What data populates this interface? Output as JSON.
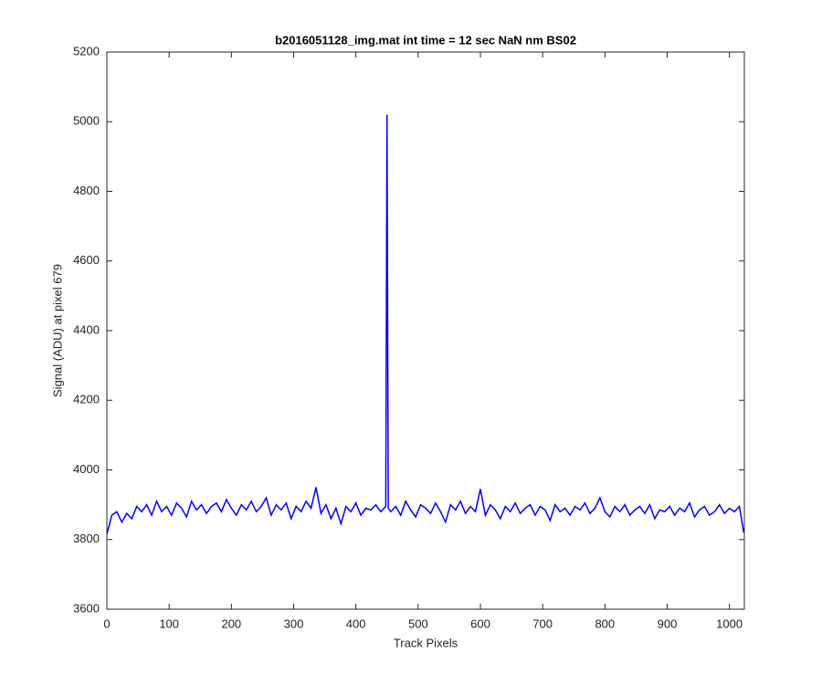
{
  "chart_data": {
    "type": "line",
    "title": "b2016051128_img.mat int time = 12 sec  NaN nm BS02",
    "x_label": "Track Pixels",
    "y_label": "Signal (ADU) at pixel 679",
    "x": [
      0,
      8,
      16,
      24,
      32,
      40,
      48,
      56,
      64,
      72,
      80,
      88,
      96,
      104,
      112,
      120,
      128,
      136,
      144,
      152,
      160,
      168,
      176,
      184,
      192,
      200,
      208,
      216,
      224,
      232,
      240,
      248,
      256,
      264,
      272,
      280,
      288,
      296,
      304,
      312,
      320,
      328,
      336,
      344,
      352,
      360,
      368,
      376,
      384,
      392,
      400,
      408,
      416,
      424,
      432,
      440,
      448,
      450,
      452,
      456,
      464,
      472,
      480,
      488,
      496,
      504,
      512,
      520,
      528,
      536,
      544,
      552,
      560,
      568,
      576,
      584,
      592,
      600,
      608,
      616,
      624,
      632,
      640,
      648,
      656,
      664,
      672,
      680,
      688,
      696,
      704,
      712,
      720,
      728,
      736,
      744,
      752,
      760,
      768,
      776,
      784,
      792,
      800,
      808,
      816,
      824,
      832,
      840,
      848,
      856,
      864,
      872,
      880,
      888,
      896,
      904,
      912,
      920,
      928,
      936,
      944,
      952,
      960,
      968,
      976,
      984,
      992,
      1000,
      1008,
      1016,
      1023
    ],
    "series": [
      {
        "name": "signal",
        "color": "#0000ff",
        "values": [
          3815,
          3870,
          3880,
          3850,
          3875,
          3860,
          3895,
          3880,
          3900,
          3870,
          3910,
          3880,
          3895,
          3870,
          3905,
          3890,
          3865,
          3910,
          3885,
          3900,
          3875,
          3895,
          3905,
          3880,
          3915,
          3890,
          3870,
          3900,
          3885,
          3910,
          3880,
          3895,
          3920,
          3870,
          3900,
          3885,
          3905,
          3860,
          3895,
          3880,
          3910,
          3890,
          3950,
          3875,
          3900,
          3860,
          3890,
          3845,
          3895,
          3880,
          3905,
          3870,
          3890,
          3885,
          3900,
          3880,
          3895,
          5020,
          3890,
          3880,
          3895,
          3870,
          3910,
          3885,
          3865,
          3900,
          3890,
          3875,
          3905,
          3880,
          3850,
          3900,
          3885,
          3910,
          3875,
          3895,
          3880,
          3945,
          3870,
          3900,
          3885,
          3860,
          3895,
          3880,
          3905,
          3875,
          3890,
          3900,
          3870,
          3895,
          3885,
          3855,
          3900,
          3880,
          3890,
          3870,
          3895,
          3885,
          3905,
          3875,
          3890,
          3920,
          3880,
          3865,
          3895,
          3880,
          3900,
          3870,
          3885,
          3895,
          3875,
          3900,
          3860,
          3885,
          3880,
          3895,
          3870,
          3890,
          3880,
          3905,
          3865,
          3885,
          3895,
          3870,
          3880,
          3900,
          3875,
          3890,
          3880,
          3895,
          3820
        ]
      }
    ],
    "xlim": [
      0,
      1024
    ],
    "xticks": [
      0,
      100,
      200,
      300,
      400,
      500,
      600,
      700,
      800,
      900,
      1000
    ],
    "ylim": [
      3600,
      5200
    ],
    "yticks": [
      3600,
      3800,
      4000,
      4200,
      4400,
      4600,
      4800,
      5000,
      5200
    ]
  }
}
